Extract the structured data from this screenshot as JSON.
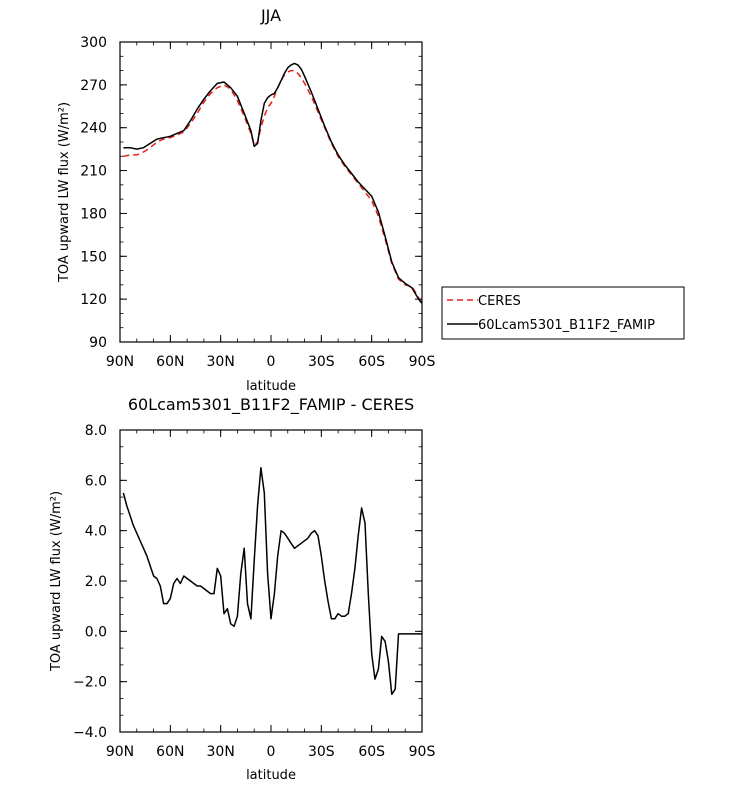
{
  "chart_data": [
    {
      "type": "line",
      "title": "JJA",
      "xlabel": "latitude",
      "ylabel": "TOA upward LW flux (W/m²)",
      "xlim": [
        -90,
        90
      ],
      "ylim": [
        90,
        300
      ],
      "xticks": [
        -90,
        -60,
        -30,
        0,
        30,
        60,
        90
      ],
      "xtick_labels": [
        "90N",
        "60N",
        "30N",
        "0",
        "30S",
        "60S",
        "90S"
      ],
      "yticks": [
        90,
        120,
        150,
        180,
        210,
        240,
        270,
        300
      ],
      "ytick_labels": [
        "90",
        "120",
        "150",
        "180",
        "210",
        "240",
        "270",
        "300"
      ],
      "legend": {
        "placement": "right",
        "entries": [
          "CERES",
          "60Lcam5301_B11F2_FAMIP"
        ]
      },
      "series": [
        {
          "name": "CERES",
          "color": "#e8201a",
          "style": "dashed",
          "x": [
            -88,
            -84,
            -80,
            -76,
            -72,
            -68,
            -64,
            -60,
            -56,
            -52,
            -48,
            -44,
            -40,
            -36,
            -32,
            -28,
            -24,
            -20,
            -16,
            -12,
            -10,
            -8,
            -6,
            -4,
            -2,
            0,
            2,
            4,
            6,
            8,
            10,
            12,
            14,
            16,
            18,
            20,
            24,
            28,
            32,
            36,
            40,
            44,
            48,
            52,
            56,
            60,
            64,
            68,
            72,
            76,
            80,
            84,
            88,
            90
          ],
          "y": [
            220,
            221,
            221,
            223,
            226,
            230,
            232,
            233,
            235,
            237,
            243,
            250,
            258,
            264,
            268,
            270,
            267,
            259,
            248,
            236,
            228,
            230,
            240,
            248,
            254,
            257,
            262,
            268,
            273,
            277,
            279,
            280,
            280,
            278,
            275,
            271,
            262,
            251,
            240,
            229,
            220,
            213,
            207,
            201,
            195,
            189,
            178,
            162,
            145,
            134,
            130,
            129,
            121,
            117
          ]
        },
        {
          "name": "60Lcam5301_B11F2_FAMIP",
          "color": "#000000",
          "style": "solid",
          "x": [
            -88,
            -84,
            -80,
            -76,
            -72,
            -68,
            -64,
            -60,
            -56,
            -52,
            -48,
            -44,
            -40,
            -36,
            -32,
            -28,
            -24,
            -20,
            -16,
            -12,
            -10,
            -8,
            -6,
            -4,
            -2,
            0,
            2,
            4,
            6,
            8,
            10,
            12,
            14,
            16,
            18,
            20,
            24,
            28,
            32,
            36,
            40,
            44,
            48,
            52,
            56,
            60,
            64,
            68,
            72,
            76,
            80,
            84,
            88,
            90
          ],
          "y": [
            226,
            226,
            225,
            226,
            229,
            232,
            233,
            234,
            236,
            238,
            245,
            253,
            260,
            266,
            271,
            272,
            268,
            262,
            250,
            238,
            227,
            229,
            245,
            257,
            261,
            263,
            264,
            268,
            273,
            278,
            282,
            284,
            285,
            284,
            281,
            276,
            265,
            253,
            241,
            230,
            221,
            214,
            208,
            202,
            197,
            192,
            181,
            164,
            146,
            135,
            131,
            128,
            120,
            117
          ]
        }
      ]
    },
    {
      "type": "line",
      "title": "60Lcam5301_B11F2_FAMIP - CERES",
      "xlabel": "latitude",
      "ylabel": "TOA upward LW flux (W/m²)",
      "xlim": [
        -90,
        90
      ],
      "ylim": [
        -4,
        8
      ],
      "xticks": [
        -90,
        -60,
        -30,
        0,
        30,
        60,
        90
      ],
      "xtick_labels": [
        "90N",
        "60N",
        "30N",
        "0",
        "30S",
        "60S",
        "90S"
      ],
      "yticks": [
        -4,
        -2,
        0,
        2,
        4,
        6,
        8
      ],
      "ytick_labels": [
        "−4.0",
        "−2.0",
        "0.0",
        "2.0",
        "4.0",
        "6.0",
        "8.0"
      ],
      "series": [
        {
          "color": "#000000",
          "style": "solid",
          "x": [
            -88,
            -86,
            -84,
            -82,
            -80,
            -78,
            -76,
            -74,
            -72,
            -70,
            -68,
            -66,
            -64,
            -62,
            -60,
            -58,
            -56,
            -54,
            -52,
            -50,
            -48,
            -46,
            -44,
            -42,
            -40,
            -38,
            -36,
            -34,
            -32,
            -30,
            -28,
            -26,
            -24,
            -22,
            -20,
            -18,
            -16,
            -14,
            -12,
            -10,
            -8,
            -6,
            -4,
            -2,
            0,
            2,
            4,
            6,
            8,
            10,
            12,
            14,
            16,
            18,
            20,
            22,
            24,
            26,
            28,
            30,
            32,
            34,
            36,
            38,
            40,
            42,
            44,
            46,
            48,
            50,
            52,
            54,
            56,
            58,
            60,
            62,
            64,
            66,
            68,
            70,
            72,
            74,
            76,
            78,
            80,
            82,
            84,
            86,
            88,
            90
          ],
          "y": [
            5.5,
            5.0,
            4.6,
            4.2,
            3.9,
            3.6,
            3.3,
            3.0,
            2.6,
            2.2,
            2.1,
            1.8,
            1.1,
            1.1,
            1.3,
            1.9,
            2.1,
            1.9,
            2.2,
            2.1,
            2.0,
            1.9,
            1.8,
            1.8,
            1.7,
            1.6,
            1.5,
            1.5,
            2.5,
            2.2,
            0.7,
            0.9,
            0.3,
            0.2,
            0.6,
            2.3,
            3.3,
            1.1,
            0.5,
            2.8,
            5.0,
            6.5,
            5.5,
            2.3,
            0.5,
            1.5,
            3.0,
            4.0,
            3.9,
            3.7,
            3.5,
            3.3,
            3.4,
            3.5,
            3.6,
            3.7,
            3.9,
            4.0,
            3.8,
            3.0,
            2.0,
            1.2,
            0.5,
            0.5,
            0.7,
            0.6,
            0.6,
            0.7,
            1.5,
            2.5,
            3.8,
            4.9,
            4.3,
            1.5,
            -0.9,
            -1.9,
            -1.5,
            -0.2,
            -0.4,
            -1.2,
            -2.5,
            -2.3,
            -0.1,
            -0.1,
            -0.1,
            -0.1,
            -0.1,
            -0.1,
            -0.1,
            -0.1
          ]
        }
      ]
    }
  ]
}
